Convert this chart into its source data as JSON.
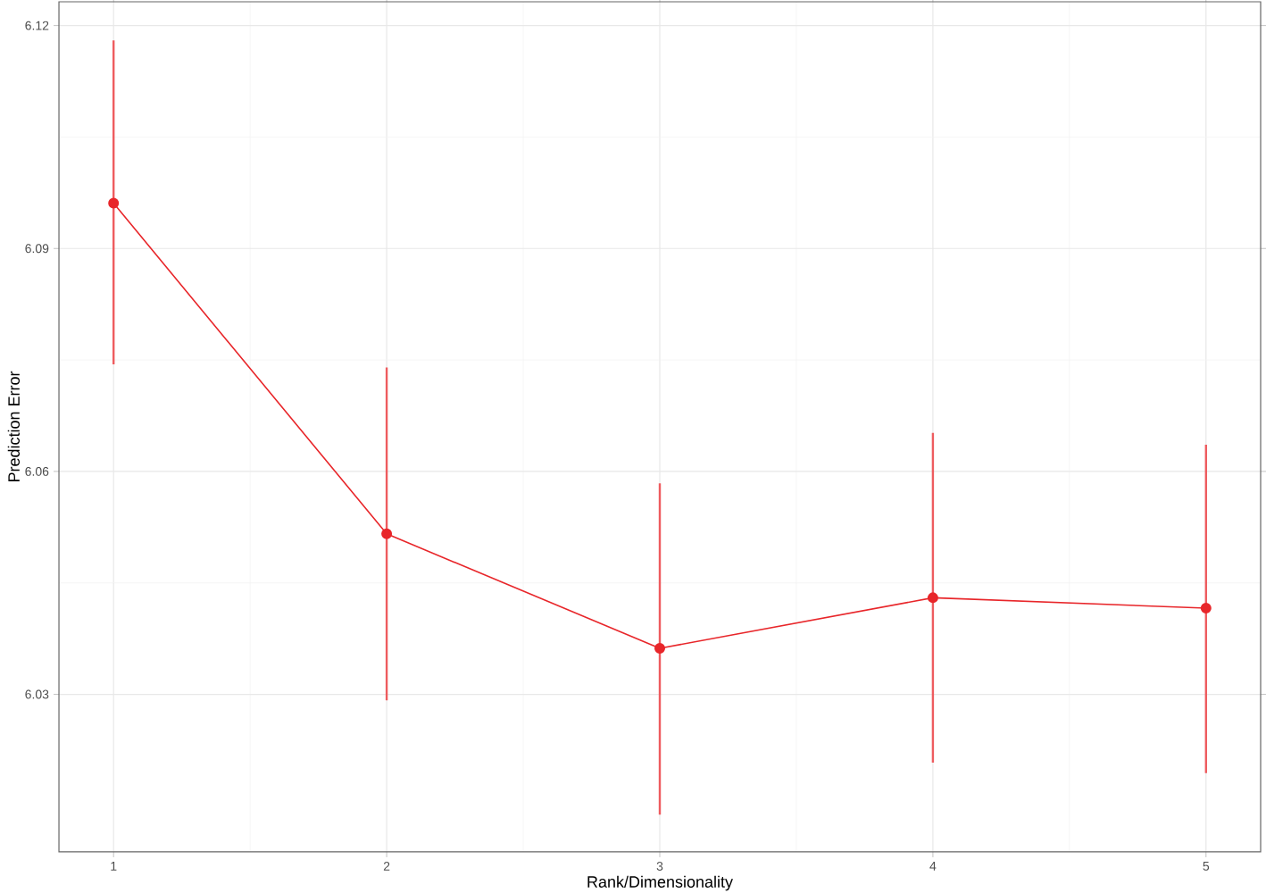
{
  "chart_data": {
    "type": "line",
    "xlabel": "Rank/Dimensionality",
    "ylabel": "Prediction Error",
    "x": [
      1,
      2,
      3,
      4,
      5
    ],
    "series": [
      {
        "color": "#e8262a",
        "values": [
          6.0961,
          6.0516,
          6.0362,
          6.043,
          6.0416
        ],
        "errors": [
          [
            6.0744,
            6.118
          ],
          [
            6.0292,
            6.074
          ],
          [
            6.0138,
            6.0584
          ],
          [
            6.0208,
            6.0652
          ],
          [
            6.0194,
            6.0636
          ]
        ]
      }
    ],
    "xlim": [
      0.8,
      5.2
    ],
    "ylim": [
      6.0088,
      6.1232
    ],
    "xticks": [
      1,
      2,
      3,
      4,
      5
    ],
    "yticks": [
      6.03,
      6.06,
      6.09,
      6.12
    ],
    "grid": true,
    "marker": "circle",
    "line_style": "solid"
  }
}
